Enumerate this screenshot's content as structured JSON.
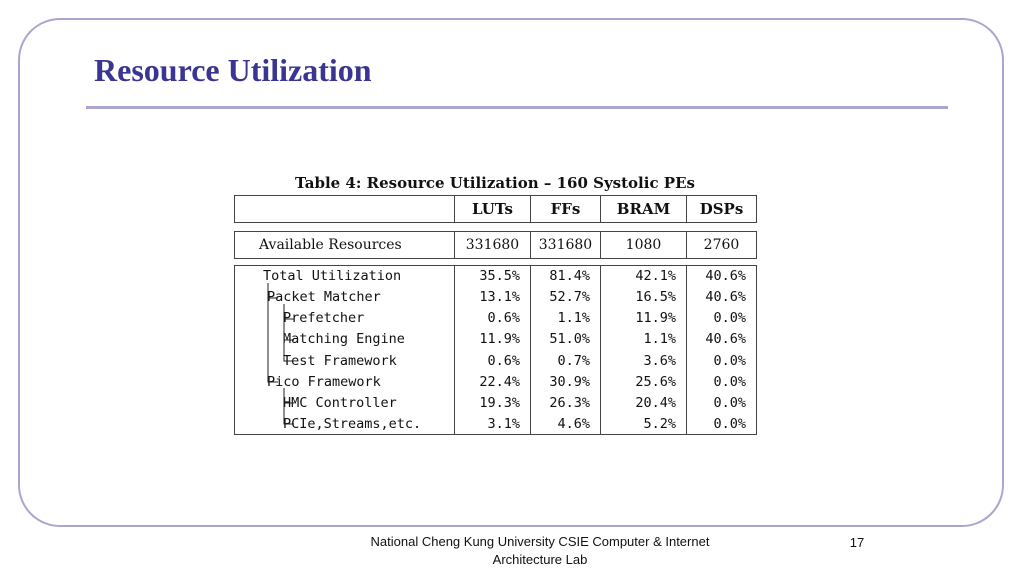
{
  "slide": {
    "title": "Resource Utilization",
    "page_number": "17",
    "footer_line1": "National Cheng Kung University CSIE Computer & Internet",
    "footer_line2": "Architecture Lab"
  },
  "table": {
    "caption": "Table 4: Resource Utilization – 160 Systolic PEs",
    "headers": [
      "",
      "LUTs",
      "FFs",
      "BRAM",
      "DSPs"
    ],
    "available": {
      "name": "Available Resources",
      "values": [
        "331680",
        "331680",
        "1080",
        "2760"
      ]
    },
    "rows": [
      {
        "name": "Total Utilization",
        "values": [
          "35.5%",
          "81.4%",
          "42.1%",
          "40.6%"
        ]
      },
      {
        "name": "Packet Matcher",
        "values": [
          "13.1%",
          "52.7%",
          "16.5%",
          "40.6%"
        ]
      },
      {
        "name": "Prefetcher",
        "values": [
          "0.6%",
          "1.1%",
          "11.9%",
          "0.0%"
        ]
      },
      {
        "name": "Matching Engine",
        "values": [
          "11.9%",
          "51.0%",
          "1.1%",
          "40.6%"
        ]
      },
      {
        "name": "Test Framework",
        "values": [
          "0.6%",
          "0.7%",
          "3.6%",
          "0.0%"
        ]
      },
      {
        "name": "Pico Framework",
        "values": [
          "22.4%",
          "30.9%",
          "25.6%",
          "0.0%"
        ]
      },
      {
        "name": "HMC Controller",
        "values": [
          "19.3%",
          "26.3%",
          "20.4%",
          "0.0%"
        ]
      },
      {
        "name": "PCIe,Streams,etc.",
        "values": [
          "3.1%",
          "4.6%",
          "5.2%",
          "0.0%"
        ]
      }
    ]
  }
}
